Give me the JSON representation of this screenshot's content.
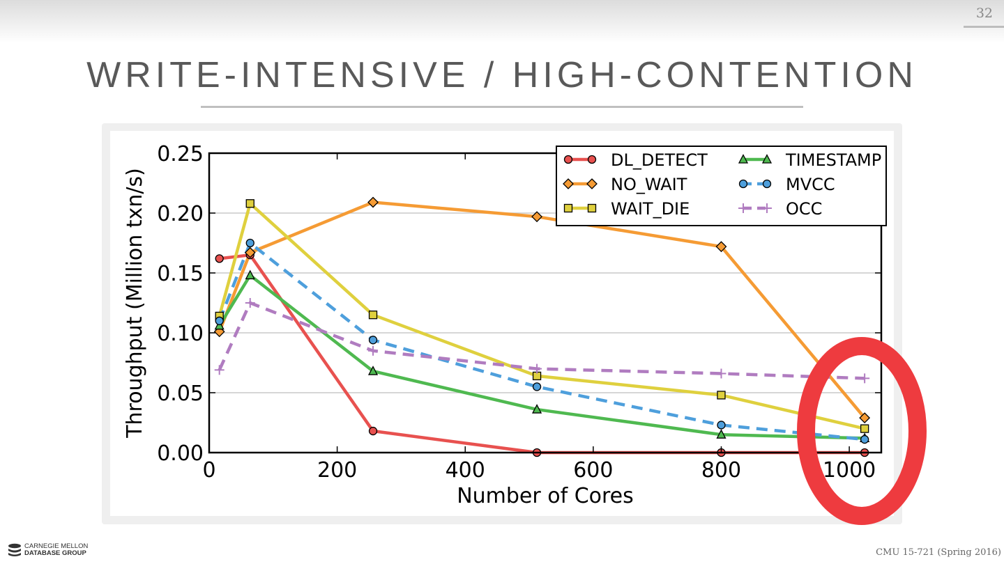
{
  "slide": {
    "number": "32",
    "title": "WRITE-INTENSIVE / HIGH-CONTENTION",
    "footer_logo_line1": "CARNEGIE MELLON",
    "footer_logo_line2": "DATABASE GROUP",
    "footer_course": "CMU 15-721 (Spring 2016)"
  },
  "chart_data": {
    "type": "line",
    "title": "",
    "xlabel": "Number of Cores",
    "ylabel": "Throughput (Million txn/s)",
    "xlim": [
      0,
      1050
    ],
    "ylim": [
      0,
      0.25
    ],
    "xticks": [
      0,
      200,
      400,
      600,
      800,
      1000
    ],
    "xtick_labels": [
      "0",
      "200",
      "400",
      "600",
      "800",
      "1000"
    ],
    "yticks": [
      0,
      0.05,
      0.1,
      0.15,
      0.2,
      0.25
    ],
    "ytick_labels": [
      "0.00",
      "0.05",
      "0.10",
      "0.15",
      "0.20",
      "0.25"
    ],
    "grid": "horizontal",
    "legend": "top-right",
    "x": [
      16,
      64,
      256,
      512,
      800,
      1024
    ],
    "series": [
      {
        "name": "DL_DETECT",
        "color": "#e8514f",
        "marker": "circle",
        "dash": false,
        "values": [
          0.162,
          0.165,
          0.018,
          0.0,
          0.0,
          0.0
        ]
      },
      {
        "name": "NO_WAIT",
        "color": "#f59b34",
        "marker": "diamond",
        "dash": false,
        "values": [
          0.101,
          0.167,
          0.209,
          0.197,
          0.172,
          0.029
        ]
      },
      {
        "name": "WAIT_DIE",
        "color": "#dfd03e",
        "marker": "square",
        "dash": false,
        "values": [
          0.114,
          0.208,
          0.115,
          0.064,
          0.048,
          0.02
        ]
      },
      {
        "name": "TIMESTAMP",
        "color": "#4fb950",
        "marker": "triangle",
        "dash": false,
        "values": [
          0.106,
          0.148,
          0.068,
          0.036,
          0.015,
          0.012
        ]
      },
      {
        "name": "MVCC",
        "color": "#4e9fdc",
        "marker": "circle",
        "dash": true,
        "values": [
          0.11,
          0.175,
          0.094,
          0.055,
          0.023,
          0.011
        ]
      },
      {
        "name": "OCC",
        "color": "#b07cc0",
        "marker": "plus",
        "dash": true,
        "values": [
          0.069,
          0.125,
          0.085,
          0.07,
          0.066,
          0.062
        ]
      }
    ],
    "annotation": {
      "type": "ellipse-highlight",
      "color": "#ee3b3f",
      "target_x": 1024
    }
  }
}
